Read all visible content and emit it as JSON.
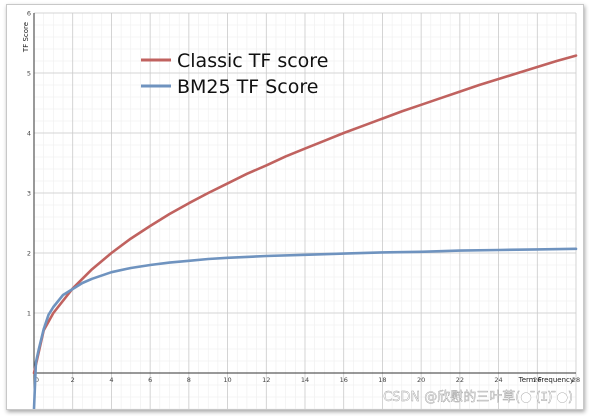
{
  "chart_data": {
    "type": "line",
    "title": "",
    "xlabel": "Term Frequency",
    "ylabel": "TF Score",
    "xlim": [
      0,
      28
    ],
    "ylim": [
      -0.6,
      6
    ],
    "x_ticks": [
      "0",
      "2",
      "4",
      "6",
      "8",
      "10",
      "12",
      "14",
      "16",
      "18",
      "20",
      "22",
      "24",
      "26",
      "28"
    ],
    "y_ticks": [
      "1",
      "2",
      "3",
      "4",
      "5",
      "6"
    ],
    "grid": true,
    "legend_position": "top-left",
    "series": [
      {
        "name": "Classic TF score",
        "color": "#c0625f",
        "x": [
          0,
          0.5,
          1,
          2,
          3,
          4,
          5,
          6,
          7,
          8,
          9,
          10,
          11,
          12,
          13,
          14,
          15,
          16,
          17,
          18,
          19,
          20,
          21,
          22,
          23,
          24,
          25,
          26,
          27,
          28
        ],
        "y": [
          0,
          0.71,
          1.0,
          1.41,
          1.73,
          2.0,
          2.24,
          2.45,
          2.65,
          2.83,
          3.0,
          3.16,
          3.32,
          3.46,
          3.61,
          3.74,
          3.87,
          4.0,
          4.12,
          4.24,
          4.36,
          4.47,
          4.58,
          4.69,
          4.8,
          4.9,
          5.0,
          5.1,
          5.2,
          5.29
        ]
      },
      {
        "name": "BM25 TF Score",
        "color": "#6f93bf",
        "x": [
          0,
          0.1,
          0.25,
          0.5,
          0.75,
          1,
          1.5,
          2,
          2.5,
          3,
          4,
          5,
          6,
          7,
          8,
          9,
          10,
          12,
          14,
          16,
          18,
          20,
          22,
          24,
          26,
          28
        ],
        "y": [
          -0.6,
          0.18,
          0.4,
          0.73,
          0.97,
          1.1,
          1.3,
          1.4,
          1.5,
          1.57,
          1.68,
          1.75,
          1.8,
          1.84,
          1.87,
          1.9,
          1.92,
          1.95,
          1.97,
          1.99,
          2.01,
          2.02,
          2.04,
          2.05,
          2.06,
          2.07
        ]
      }
    ]
  },
  "watermark": "CSDN @欣慰的三叶草(● ̄(ｴ) ̄●)"
}
